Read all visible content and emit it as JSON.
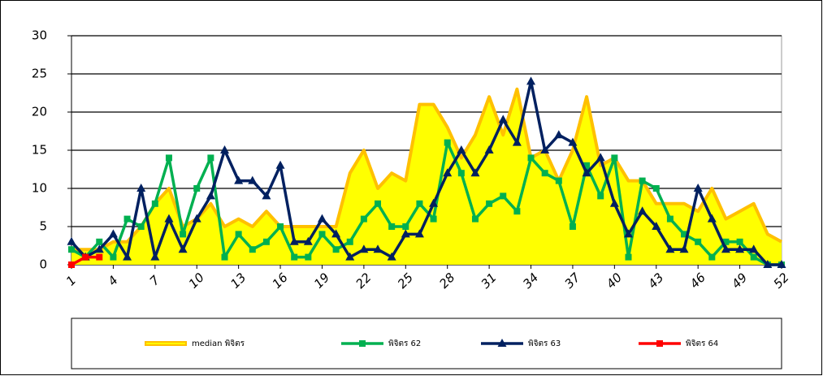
{
  "chart_data": {
    "type": "line",
    "x": [
      1,
      2,
      3,
      4,
      5,
      6,
      7,
      8,
      9,
      10,
      11,
      12,
      13,
      14,
      15,
      16,
      17,
      18,
      19,
      20,
      21,
      22,
      23,
      24,
      25,
      26,
      27,
      28,
      29,
      30,
      31,
      32,
      33,
      34,
      35,
      36,
      37,
      38,
      39,
      40,
      41,
      42,
      43,
      44,
      45,
      46,
      47,
      48,
      49,
      50,
      51,
      52
    ],
    "xlim": [
      1,
      52
    ],
    "xticks": [
      1,
      4,
      7,
      10,
      13,
      16,
      19,
      22,
      25,
      28,
      31,
      34,
      37,
      40,
      43,
      46,
      49,
      52
    ],
    "ylim": [
      0,
      30
    ],
    "yticks": [
      0,
      5,
      10,
      15,
      20,
      25,
      30
    ],
    "grid": true,
    "legend": "bottom",
    "series": [
      {
        "name": "median พิจิตร",
        "color": "#ffc000",
        "fill": "#ffff00",
        "area": true,
        "values": [
          2,
          2,
          2,
          3,
          3,
          5,
          8,
          10,
          5,
          6,
          8,
          5,
          6,
          5,
          7,
          5,
          5,
          5,
          5,
          5,
          12,
          15,
          10,
          12,
          11,
          21,
          21,
          18,
          14,
          17,
          22,
          17,
          23,
          14,
          15,
          11,
          15,
          22,
          13,
          14,
          11,
          11,
          8,
          8,
          8,
          7,
          10,
          6,
          7,
          8,
          4,
          3
        ]
      },
      {
        "name": "พิจิตร 62",
        "color": "#00b050",
        "marker": "square",
        "values": [
          2,
          1,
          3,
          1,
          6,
          5,
          8,
          14,
          4,
          10,
          14,
          1,
          4,
          2,
          3,
          5,
          1,
          1,
          4,
          2,
          3,
          6,
          8,
          5,
          5,
          8,
          6,
          16,
          12,
          6,
          8,
          9,
          7,
          14,
          12,
          11,
          5,
          13,
          9,
          14,
          1,
          11,
          10,
          6,
          4,
          3,
          1,
          3,
          3,
          1,
          0,
          0
        ]
      },
      {
        "name": "พิจิตร 63",
        "color": "#002060",
        "marker": "triangle",
        "values": [
          3,
          1,
          2,
          4,
          1,
          10,
          1,
          6,
          2,
          6,
          9,
          15,
          11,
          11,
          9,
          13,
          3,
          3,
          6,
          4,
          1,
          2,
          2,
          1,
          4,
          4,
          8,
          12,
          15,
          12,
          15,
          19,
          16,
          24,
          15,
          17,
          16,
          12,
          14,
          8,
          4,
          7,
          5,
          2,
          2,
          10,
          6,
          2,
          2,
          2,
          0,
          0
        ]
      },
      {
        "name": "พิจิตร 64",
        "color": "#ff0000",
        "marker": "square",
        "values": [
          0,
          1,
          1,
          null,
          null,
          null,
          null,
          null,
          null,
          null,
          null,
          null,
          null,
          null,
          null,
          null,
          null,
          null,
          null,
          null,
          null,
          null,
          null,
          null,
          null,
          null,
          null,
          null,
          null,
          null,
          null,
          null,
          null,
          null,
          null,
          null,
          null,
          null,
          null,
          null,
          null,
          null,
          null,
          null,
          null,
          null,
          null,
          null,
          null,
          null,
          null,
          null
        ]
      }
    ]
  }
}
